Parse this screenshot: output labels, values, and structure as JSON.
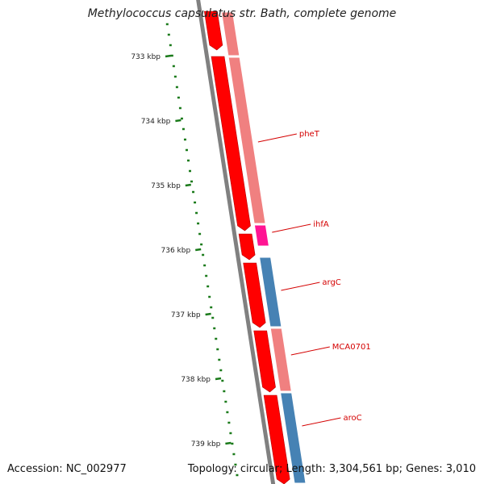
{
  "title": "Methylococcus capsulatus str. Bath, complete genome",
  "footer": {
    "accession": "Accession: NC_002977",
    "summary": "Topology: circular; Length: 3,304,561 bp; Genes: 3,010"
  },
  "ticks": [
    {
      "kbp": 733,
      "label": "733 kbp"
    },
    {
      "kbp": 734,
      "label": "734 kbp"
    },
    {
      "kbp": 735,
      "label": "735 kbp"
    },
    {
      "kbp": 736,
      "label": "736 kbp"
    },
    {
      "kbp": 737,
      "label": "737 kbp"
    },
    {
      "kbp": 738,
      "label": "738 kbp"
    },
    {
      "kbp": 739,
      "label": "739 kbp"
    }
  ],
  "gene_labels": [
    {
      "name": "pheT",
      "kbp": 734.2
    },
    {
      "name": "ihfA",
      "kbp": 735.6
    },
    {
      "name": "argC",
      "kbp": 736.5
    },
    {
      "name": "MCA0701",
      "kbp": 737.5
    },
    {
      "name": "aroC",
      "kbp": 738.6
    }
  ],
  "features": {
    "cds_outer": [
      [
        732.3,
        732.9
      ],
      [
        733.0,
        735.7
      ],
      [
        735.75,
        736.15
      ],
      [
        736.2,
        737.2
      ],
      [
        737.25,
        738.2
      ],
      [
        738.25,
        739.7
      ]
    ],
    "genes_inner": [
      {
        "start": 732.3,
        "end": 733.0,
        "type": "pink"
      },
      {
        "start": 733.0,
        "end": 735.6,
        "type": "pink"
      },
      {
        "start": 735.6,
        "end": 735.95,
        "type": "magenta"
      },
      {
        "start": 736.1,
        "end": 737.2,
        "type": "blue"
      },
      {
        "start": 737.2,
        "end": 738.2,
        "type": "pink"
      },
      {
        "start": 738.2,
        "end": 739.7,
        "type": "blue"
      }
    ]
  },
  "colors": {
    "cds": "#ff0000",
    "gene_pink": "#f08080",
    "gene_blue": "#4682b4",
    "gene_magenta": "#ff1493",
    "backbone": "#808080",
    "gc_dots": "#1a7a1a",
    "label": "#d40000"
  }
}
